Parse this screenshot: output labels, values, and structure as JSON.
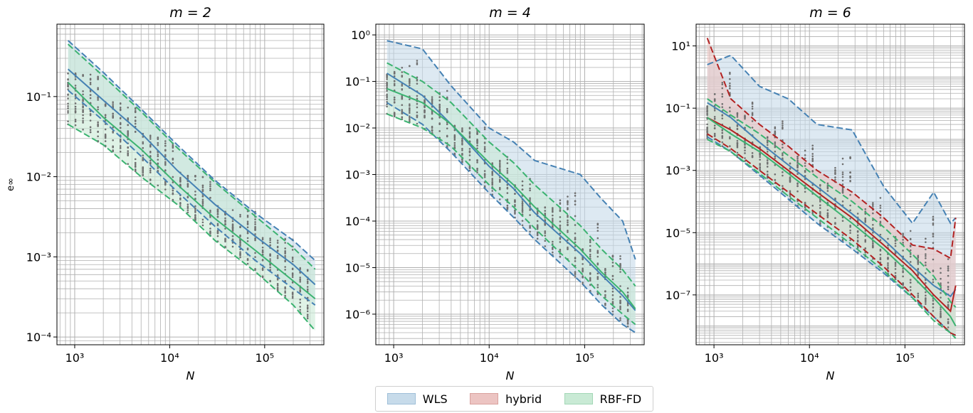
{
  "legend": {
    "items": [
      {
        "label": "WLS",
        "fill": "#c7dbea",
        "edge": "#9fbfd8"
      },
      {
        "label": "hybrid",
        "fill": "#ecc4c2",
        "edge": "#d9a19e"
      },
      {
        "label": "RBF-FD",
        "fill": "#c9ead5",
        "edge": "#a3d7b6"
      }
    ]
  },
  "colors": {
    "wls": "#4682b4",
    "hybrid": "#b22222",
    "rbffd": "#3cb371",
    "dots": "#707070",
    "grid": "#b0b0b0"
  },
  "chart_data": [
    {
      "type": "line",
      "title": "m = 2",
      "xlabel": "N",
      "ylabel": "e∞",
      "xscale": "log",
      "yscale": "log",
      "xlim": [
        650,
        420000
      ],
      "ylim": [
        8e-05,
        0.8
      ],
      "xticks": [
        {
          "v": 1000,
          "label": "10³"
        },
        {
          "v": 10000,
          "label": "10⁴"
        },
        {
          "v": 100000,
          "label": "10⁵"
        }
      ],
      "yticks": [
        {
          "v": 0.0001,
          "label": "10⁻⁴"
        },
        {
          "v": 0.001,
          "label": "10⁻³"
        },
        {
          "v": 0.01,
          "label": "10⁻²"
        },
        {
          "v": 0.1,
          "label": "10⁻¹"
        }
      ],
      "grid": true,
      "series": [
        {
          "name": "WLS",
          "x": [
            850,
            2000,
            5000,
            12000,
            30000,
            80000,
            200000,
            340000
          ],
          "median": [
            0.22,
            0.09,
            0.035,
            0.012,
            0.0045,
            0.0018,
            0.0008,
            0.00045
          ],
          "lower": [
            0.12,
            0.05,
            0.018,
            0.0065,
            0.0024,
            0.0009,
            0.0004,
            0.00025
          ],
          "upper": [
            0.5,
            0.2,
            0.07,
            0.025,
            0.009,
            0.0035,
            0.0016,
            0.0009
          ]
        },
        {
          "name": "RBF-FD",
          "x": [
            850,
            2000,
            5000,
            12000,
            30000,
            80000,
            200000,
            340000
          ],
          "median": [
            0.15,
            0.055,
            0.022,
            0.008,
            0.003,
            0.0012,
            0.0005,
            0.0003
          ],
          "lower": [
            0.045,
            0.025,
            0.01,
            0.0045,
            0.0016,
            0.00065,
            0.00025,
            0.00012
          ],
          "upper": [
            0.45,
            0.18,
            0.065,
            0.023,
            0.0085,
            0.0032,
            0.0013,
            0.0007
          ]
        }
      ]
    },
    {
      "type": "line",
      "title": "m = 4",
      "xlabel": "N",
      "ylabel": "",
      "xscale": "log",
      "yscale": "log",
      "xlim": [
        650,
        420000
      ],
      "ylim": [
        2.2e-07,
        1.7
      ],
      "xticks": [
        {
          "v": 1000,
          "label": "10³"
        },
        {
          "v": 10000,
          "label": "10⁴"
        },
        {
          "v": 100000,
          "label": "10⁵"
        }
      ],
      "yticks": [
        {
          "v": 1e-06,
          "label": "10⁻⁶"
        },
        {
          "v": 1e-05,
          "label": "10⁻⁵"
        },
        {
          "v": 0.0001,
          "label": "10⁻⁴"
        },
        {
          "v": 0.001,
          "label": "10⁻³"
        },
        {
          "v": 0.01,
          "label": "10⁻²"
        },
        {
          "v": 0.1,
          "label": "10⁻¹"
        },
        {
          "v": 1,
          "label": "10⁰"
        }
      ],
      "grid": true,
      "series": [
        {
          "name": "WLS",
          "x": [
            850,
            2000,
            4000,
            10000,
            18000,
            30000,
            90000,
            150000,
            250000,
            340000
          ],
          "median": [
            0.15,
            0.05,
            0.012,
            0.0015,
            0.0005,
            0.00015,
            2e-05,
            7e-06,
            2.5e-06,
            1.2e-06
          ],
          "lower": [
            0.035,
            0.012,
            0.003,
            0.0004,
            0.00012,
            4e-05,
            5e-06,
            1.6e-06,
            6e-07,
            4e-07
          ],
          "upper": [
            0.75,
            0.5,
            0.08,
            0.01,
            0.005,
            0.002,
            0.001,
            0.0003,
            0.0001,
            1.5e-05
          ]
        },
        {
          "name": "RBF-FD",
          "x": [
            850,
            2000,
            4000,
            10000,
            18000,
            30000,
            90000,
            150000,
            250000,
            340000
          ],
          "median": [
            0.07,
            0.035,
            0.012,
            0.0018,
            0.0006,
            0.0002,
            2.5e-05,
            8e-06,
            3e-06,
            1.3e-06
          ],
          "lower": [
            0.02,
            0.01,
            0.004,
            0.0006,
            0.0002,
            7e-05,
            8e-06,
            2.5e-06,
            1e-06,
            6e-07
          ],
          "upper": [
            0.25,
            0.1,
            0.035,
            0.005,
            0.0018,
            0.0006,
            8e-05,
            2.5e-05,
            9e-06,
            4e-06
          ]
        }
      ]
    },
    {
      "type": "line",
      "title": "m = 6",
      "xlabel": "N",
      "ylabel": "",
      "xscale": "log",
      "yscale": "log",
      "xlim": [
        650,
        420000
      ],
      "ylim": [
        2.5e-09,
        50
      ],
      "xticks": [
        {
          "v": 1000,
          "label": "10³"
        },
        {
          "v": 10000,
          "label": "10⁴"
        },
        {
          "v": 100000,
          "label": "10⁵"
        }
      ],
      "yticks": [
        {
          "v": 1e-07,
          "label": "10⁻⁷"
        },
        {
          "v": 1e-05,
          "label": "10⁻⁵"
        },
        {
          "v": 0.001,
          "label": "10⁻³"
        },
        {
          "v": 0.1,
          "label": "10⁻¹"
        },
        {
          "v": 10,
          "label": "10¹"
        }
      ],
      "grid": true,
      "series": [
        {
          "name": "WLS",
          "x": [
            850,
            1500,
            3000,
            6000,
            12000,
            28000,
            60000,
            120000,
            200000,
            300000,
            340000
          ],
          "median": [
            0.15,
            0.05,
            0.008,
            0.0015,
            0.0003,
            4e-05,
            6e-06,
            8e-07,
            2e-07,
            9e-08,
            1.5e-07
          ],
          "lower": [
            0.012,
            0.004,
            0.0007,
            0.00012,
            2e-05,
            3e-06,
            5e-07,
            8e-08,
            2e-08,
            6e-09,
            5e-09
          ],
          "upper": [
            2.5,
            5,
            0.5,
            0.2,
            0.03,
            0.02,
            0.0003,
            2e-05,
            0.0002,
            2e-05,
            3e-05
          ]
        },
        {
          "name": "hybrid",
          "x": [
            850,
            1500,
            3000,
            6000,
            12000,
            28000,
            60000,
            120000,
            200000,
            300000,
            340000
          ],
          "median": [
            0.05,
            0.02,
            0.005,
            0.001,
            0.0002,
            3e-05,
            4e-06,
            6e-07,
            1e-07,
            3e-08,
            2e-07
          ],
          "lower": [
            0.015,
            0.005,
            0.001,
            0.0002,
            4e-05,
            6e-06,
            8e-07,
            1e-07,
            2e-08,
            6e-09,
            5e-09
          ],
          "upper": [
            18,
            0.2,
            0.03,
            0.006,
            0.001,
            0.0002,
            3e-05,
            4e-06,
            3e-06,
            1.5e-06,
            3e-05
          ]
        },
        {
          "name": "RBF-FD",
          "x": [
            850,
            1500,
            3000,
            6000,
            12000,
            28000,
            60000,
            120000,
            200000,
            300000,
            340000
          ],
          "median": [
            0.05,
            0.015,
            0.004,
            0.0008,
            0.00015,
            2e-05,
            3e-06,
            4e-07,
            8e-08,
            2e-08,
            1e-08
          ],
          "lower": [
            0.01,
            0.004,
            0.0008,
            0.00015,
            3e-05,
            4e-06,
            6e-07,
            8e-08,
            1.5e-08,
            6e-09,
            4e-09
          ],
          "upper": [
            0.2,
            0.06,
            0.015,
            0.003,
            0.0006,
            0.0001,
            1.5e-05,
            2e-06,
            4e-07,
            6e-08,
            4e-08
          ]
        }
      ]
    }
  ]
}
